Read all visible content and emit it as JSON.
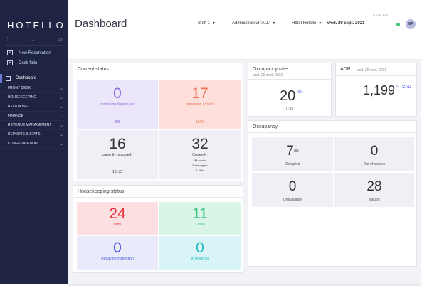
{
  "app": {
    "logo": "HOTELLO"
  },
  "sidebar": {
    "tools": {
      "pin": "⌶",
      "back": "←",
      "forward": "⇄"
    },
    "quick": [
      {
        "label": "New Reservation"
      },
      {
        "label": "Desk folio"
      }
    ],
    "active": {
      "label": "Dashboard"
    },
    "menu": [
      {
        "label": "FRONT DESK"
      },
      {
        "label": "HOUSEKEEPING"
      },
      {
        "label": "RELATIONS"
      },
      {
        "label": "FINANCE"
      },
      {
        "label": "REVENUE MANAGEMENT"
      },
      {
        "label": "REPORTS & STATS"
      },
      {
        "label": "CONFIGURATION"
      }
    ],
    "chevron": "⌄"
  },
  "header": {
    "title": "Dashboard",
    "shift": "Shift 1",
    "admin": "Administrateur 'ALL'",
    "hotel": "Hôtel Hotello",
    "date": "wed. 29 sept. 2021",
    "caret": "▼",
    "status_label": "STATUS",
    "avatar": "MF",
    "status_color": "#3bc273"
  },
  "current_status": {
    "title": "Current status",
    "departures": {
      "value": "0",
      "label": "remaining departures",
      "sub": "8/8",
      "bg": "#ece6fb",
      "color": "#8b6fd6"
    },
    "arrivals": {
      "value": "17",
      "label": "remaining arrivals",
      "sub": "16/33",
      "bg": "#fde0dc",
      "color": "#ee6f54"
    },
    "occupied": {
      "value": "16",
      "label": "currently occupied*",
      "sub": "16 :33",
      "bg": "#eef0f5",
      "color": "#333333"
    },
    "currently": {
      "value": "32",
      "label": "Currently:",
      "adults_n": "29",
      "adults": "adults",
      "teens_n": "2",
      "teens": "teenagers",
      "child_n": "1",
      "child": "child",
      "bg": "#eef0f5",
      "color": "#333333"
    }
  },
  "housekeeping": {
    "title": "Housekeeping status",
    "dirty": {
      "value": "24",
      "label": "Dirty",
      "bg": "#fcdfe0",
      "color": "#e8313f"
    },
    "clean": {
      "value": "11",
      "label": "Clean",
      "bg": "#d9f5e8",
      "color": "#2fc27c"
    },
    "ready": {
      "value": "0",
      "label": "Ready for inspection",
      "bg": "#e9ebfb",
      "color": "#4e5ae0"
    },
    "progress": {
      "value": "0",
      "label": "In progress",
      "bg": "#d8f4f6",
      "color": "#2ab9c6"
    }
  },
  "occupancy_rate": {
    "title": "Occupancy rate :",
    "date": "wed. 29 sept. 2021",
    "value": "20",
    "decimal": ",0%",
    "sub": "7 :35"
  },
  "adr": {
    "title": "ADR :",
    "date": "wed. 29 sept. 2021",
    "value": "1,199",
    "decimal": ",29",
    "currency": "CAD"
  },
  "occupancy": {
    "title": "Occupancy",
    "occupied": {
      "value": "7",
      "sup": "/35",
      "label": "Occupied"
    },
    "out": {
      "value": "0",
      "label": "Out of service"
    },
    "unavailable": {
      "value": "0",
      "label": "Unavailable"
    },
    "vacant": {
      "value": "28",
      "label": "Vacant"
    }
  }
}
